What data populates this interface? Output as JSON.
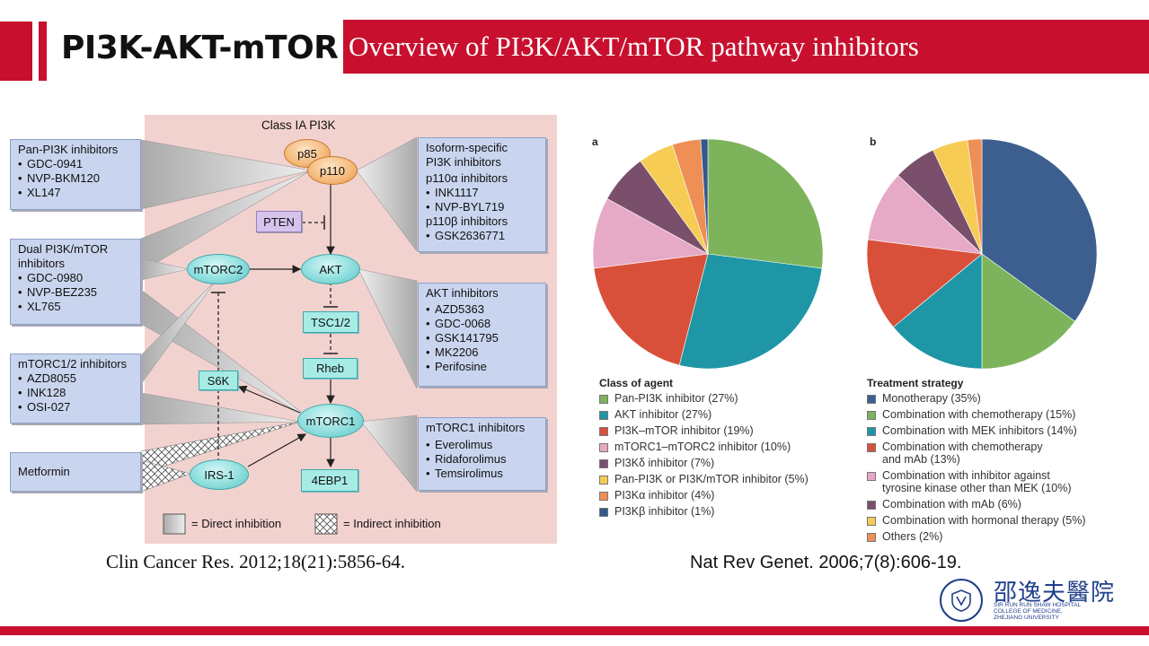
{
  "header": {
    "title": "PI3K-AKT-mTOR",
    "subtitle": "Overview of PI3K/AKT/mTOR pathway inhibitors",
    "accent_color": "#c8102e"
  },
  "diagram": {
    "class_label": "Class IA PI3K",
    "nodes": {
      "p85": "p85",
      "p110": "p110",
      "pten": "PTEN",
      "akt": "AKT",
      "mtorc2": "mTORC2",
      "tsc": "TSC1/2",
      "rheb": "Rheb",
      "s6k": "S6K",
      "mtorc1": "mTORC1",
      "irs1": "IRS-1",
      "ebp1": "4EBP1"
    },
    "boxes": {
      "pan": {
        "title": "Pan-PI3K inhibitors",
        "items": [
          "GDC-0941",
          "NVP-BKM120",
          "XL147"
        ]
      },
      "dual": {
        "title1": "Dual PI3K/mTOR",
        "title2": "inhibitors",
        "items": [
          "GDC-0980",
          "NVP-BEZ235",
          "XL765"
        ]
      },
      "mtorc12": {
        "title": "mTORC1/2 inhibitors",
        "items": [
          "AZD8055",
          "INK128",
          "OSI-027"
        ]
      },
      "metformin": {
        "title": "Metformin"
      },
      "isoform": {
        "title1": "Isoform-specific",
        "title2": "PI3K inhibitors",
        "sub1": "p110α  inhibitors",
        "sub1_items": [
          "INK1117",
          "NVP-BYL719"
        ],
        "sub2": "p110β  inhibitors",
        "sub2_items": [
          "GSK2636771"
        ]
      },
      "akt": {
        "title": "AKT inhibitors",
        "items": [
          "AZD5363",
          "GDC-0068",
          "GSK141795",
          "MK2206",
          "Perifosine"
        ]
      },
      "mtorc1": {
        "title": "mTORC1 inhibitors",
        "items": [
          "Everolimus",
          "Ridaforolimus",
          "Temsirolimus"
        ]
      }
    },
    "legend": {
      "direct": "= Direct inhibition",
      "indirect": "= Indirect inhibition"
    },
    "citation": "Clin Cancer Res. 2012;18(21):5856-64."
  },
  "chart_data": [
    {
      "type": "pie",
      "panel": "a",
      "legend_title": "Class of agent",
      "slices": [
        {
          "label": "Pan-PI3K inhibitor (27%)",
          "lines": [
            "Pan-PI3K inhibitor (27%)"
          ],
          "value": 27,
          "color": "#7db35a"
        },
        {
          "label": "AKT inhibitor (27%)",
          "lines": [
            "AKT inhibitor (27%)"
          ],
          "value": 27,
          "color": "#1f96a6"
        },
        {
          "label": "PI3K–mTOR inhibitor (19%)",
          "lines": [
            "PI3K–mTOR inhibitor (19%)"
          ],
          "value": 19,
          "color": "#d9503a"
        },
        {
          "label": "mTORC1–mTORC2 inhibitor (10%)",
          "lines": [
            "mTORC1–mTORC2 inhibitor (10%)"
          ],
          "value": 10,
          "color": "#e6a9c6"
        },
        {
          "label": "PI3Kδ inhibitor (7%)",
          "lines": [
            "PI3Kδ inhibitor (7%)"
          ],
          "value": 7,
          "color": "#7a4f6b"
        },
        {
          "label": "Pan-PI3K or PI3K/mTOR inhibitor (5%)",
          "lines": [
            "Pan-PI3K or PI3K/mTOR inhibitor (5%)"
          ],
          "value": 5,
          "color": "#f6cc55"
        },
        {
          "label": "PI3Kα inhibitor (4%)",
          "lines": [
            "PI3Kα inhibitor (4%)"
          ],
          "value": 4,
          "color": "#ee8f55"
        },
        {
          "label": "PI3Kβ inhibitor (1%)",
          "lines": [
            "PI3Kβ inhibitor (1%)"
          ],
          "value": 1,
          "color": "#33588e"
        }
      ]
    },
    {
      "type": "pie",
      "panel": "b",
      "legend_title": "Treatment strategy",
      "slices": [
        {
          "label": "Monotherapy (35%)",
          "lines": [
            "Monotherapy (35%)"
          ],
          "value": 35,
          "color": "#3c5f8f"
        },
        {
          "label": "Combination with chemotherapy (15%)",
          "lines": [
            "Combination with chemotherapy (15%)"
          ],
          "value": 15,
          "color": "#7db35a"
        },
        {
          "label": "Combination with MEK inhibitors (14%)",
          "lines": [
            "Combination with MEK inhibitors (14%)"
          ],
          "value": 14,
          "color": "#1f96a6"
        },
        {
          "label": "Combination with chemotherapy and mAb (13%)",
          "lines": [
            "Combination with chemotherapy",
            "and mAb (13%)"
          ],
          "value": 13,
          "color": "#d9503a"
        },
        {
          "label": "Combination with inhibitor against tyrosine kinase other than MEK (10%)",
          "lines": [
            "Combination with inhibitor against",
            "tyrosine kinase other than MEK (10%)"
          ],
          "value": 10,
          "color": "#e6a9c6"
        },
        {
          "label": "Combination with mAb (6%)",
          "lines": [
            "Combination with mAb (6%)"
          ],
          "value": 6,
          "color": "#7a4f6b"
        },
        {
          "label": "Combination with hormonal therapy (5%)",
          "lines": [
            "Combination with hormonal therapy (5%)"
          ],
          "value": 5,
          "color": "#f6cc55"
        },
        {
          "label": "Others (2%)",
          "lines": [
            "Others (2%)"
          ],
          "value": 2,
          "color": "#ee8f55"
        }
      ]
    }
  ],
  "pies_citation": "Nat Rev Genet. 2006;7(8):606-19.",
  "logo": {
    "chinese": "邵逸夫醫院",
    "english": [
      "SIR RUN RUN SHAW HOSPITAL",
      "COLLEGE OF MEDICINE,",
      "ZHEJIANG UNIVERSITY"
    ]
  }
}
